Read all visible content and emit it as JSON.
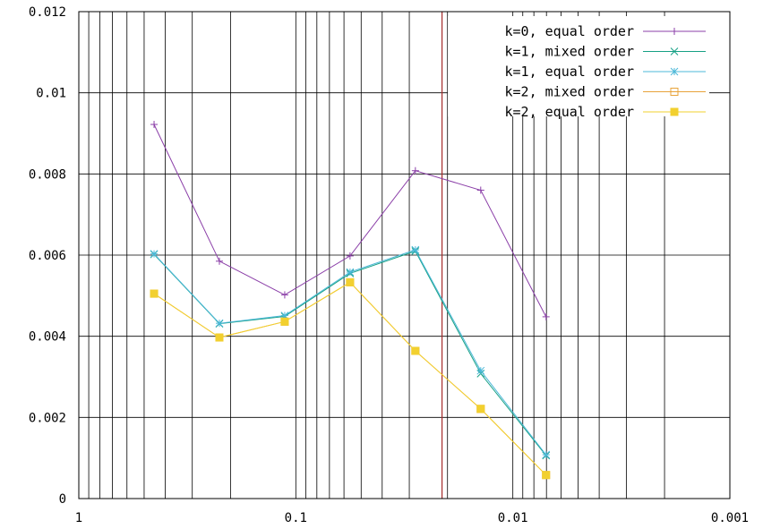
{
  "chart_data": {
    "type": "line",
    "title": "",
    "xlabel": "",
    "ylabel": "",
    "x_scale": "log",
    "x_reversed": true,
    "xlim": [
      1,
      0.001
    ],
    "ylim": [
      0,
      0.012
    ],
    "grid": true,
    "legend_position": "top-right",
    "x_tick_labels": [
      "1",
      "0.1",
      "0.01",
      "0.001"
    ],
    "y_tick_labels": [
      "0",
      "0.002",
      "0.004",
      "0.006",
      "0.008",
      "0.01",
      "0.012"
    ],
    "x_tick_values": [
      1,
      0.1,
      0.01,
      0.001
    ],
    "y_tick_values": [
      0,
      0.002,
      0.004,
      0.006,
      0.008,
      0.01,
      0.012
    ],
    "vertical_marker": {
      "x": 0.0212,
      "color": "#a52a2a"
    },
    "x": [
      0.45,
      0.225,
      0.1125,
      0.05625,
      0.028125,
      0.0140625,
      0.00703125
    ],
    "series": [
      {
        "name": "k=0, equal order",
        "color": "#8b3fa8",
        "marker": "plus",
        "values": [
          0.00922,
          0.00585,
          0.00502,
          0.00598,
          0.00808,
          0.0076,
          0.00448
        ]
      },
      {
        "name": "k=1, mixed order",
        "color": "#16a085",
        "marker": "cross",
        "values": [
          0.00602,
          0.00431,
          0.00449,
          0.00555,
          0.0061,
          0.00308,
          0.00106
        ]
      },
      {
        "name": "k=1, equal order",
        "color": "#4cb8d8",
        "marker": "star",
        "values": [
          0.00603,
          0.00432,
          0.00451,
          0.00558,
          0.00613,
          0.00315,
          0.00108
        ]
      },
      {
        "name": "k=2, mixed order",
        "color": "#e8a33a",
        "marker": "open-square",
        "values": [
          0.00505,
          0.00397,
          0.00436,
          0.00533,
          0.00364,
          0.00221,
          0.00058
        ]
      },
      {
        "name": "k=2, equal order",
        "color": "#f2d02f",
        "marker": "filled-square",
        "values": [
          0.00505,
          0.00397,
          0.00436,
          0.00533,
          0.00364,
          0.00221,
          0.00058
        ]
      }
    ]
  }
}
